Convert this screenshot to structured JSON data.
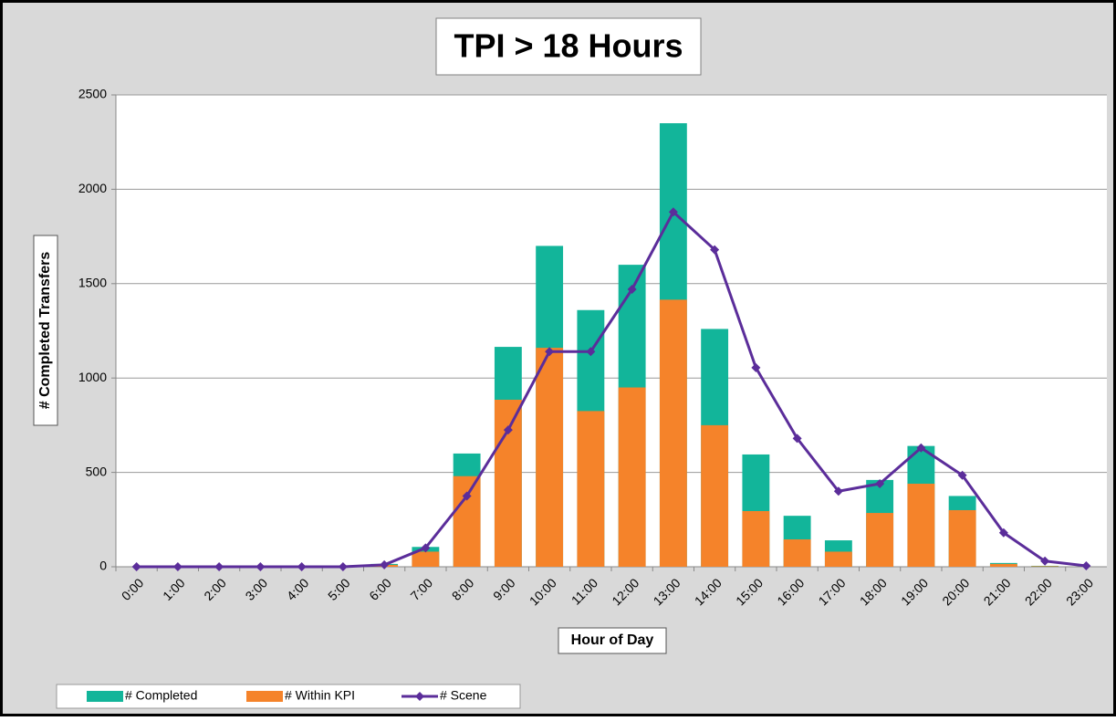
{
  "chart_data": {
    "type": "bar",
    "title": "TPI > 18 Hours",
    "x_label": "Hour of Day",
    "y_label": "# Completed Transfers",
    "categories": [
      "0:00",
      "1:00",
      "2:00",
      "3:00",
      "4:00",
      "5:00",
      "6:00",
      "7:00",
      "8:00",
      "9:00",
      "10:00",
      "11:00",
      "12:00",
      "13:00",
      "14:00",
      "15:00",
      "16:00",
      "17:00",
      "18:00",
      "19:00",
      "20:00",
      "21:00",
      "22:00",
      "23:00"
    ],
    "series": [
      {
        "name": "# Completed",
        "color": "#12b59a",
        "type": "bar",
        "values": [
          0,
          0,
          0,
          0,
          0,
          0,
          15,
          105,
          600,
          1165,
          1700,
          1360,
          1600,
          2350,
          1260,
          595,
          270,
          140,
          460,
          640,
          375,
          20,
          5,
          0
        ]
      },
      {
        "name": "# Within KPI",
        "color": "#f5832a",
        "type": "bar",
        "values": [
          0,
          0,
          0,
          0,
          0,
          0,
          10,
          80,
          480,
          885,
          1160,
          825,
          950,
          1415,
          750,
          295,
          145,
          80,
          285,
          440,
          300,
          15,
          3,
          0
        ]
      },
      {
        "name": "# Scene",
        "color": "#5b2d9a",
        "type": "line",
        "values": [
          0,
          0,
          0,
          0,
          0,
          0,
          10,
          100,
          375,
          725,
          1140,
          1140,
          1470,
          1880,
          1680,
          1055,
          680,
          400,
          440,
          630,
          485,
          180,
          30,
          5
        ]
      }
    ],
    "ylim": [
      0,
      2500
    ],
    "yticks": [
      0,
      500,
      1000,
      1500,
      2000,
      2500
    ],
    "grid": true,
    "legend": "bottom-left"
  }
}
